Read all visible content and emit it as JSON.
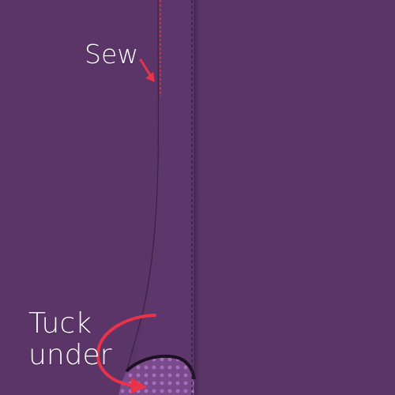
{
  "labels": {
    "sew": "Sew",
    "tuck_line1": "Tuck",
    "tuck_line2": "under"
  },
  "colors": {
    "fabric": "#5b3568",
    "fold_shadow": "#4a2a55",
    "stitch_main": "#3a2240",
    "stitch_guide": "#e8334a",
    "arrow": "#e8334a",
    "lining": "#7a4a8c",
    "lining_dots": "#a56fbd",
    "edge_dark": "#1e1022"
  },
  "icons": {
    "sew_arrow": "arrow-down-right-icon",
    "tuck_arrow": "curved-arrow-icon"
  }
}
